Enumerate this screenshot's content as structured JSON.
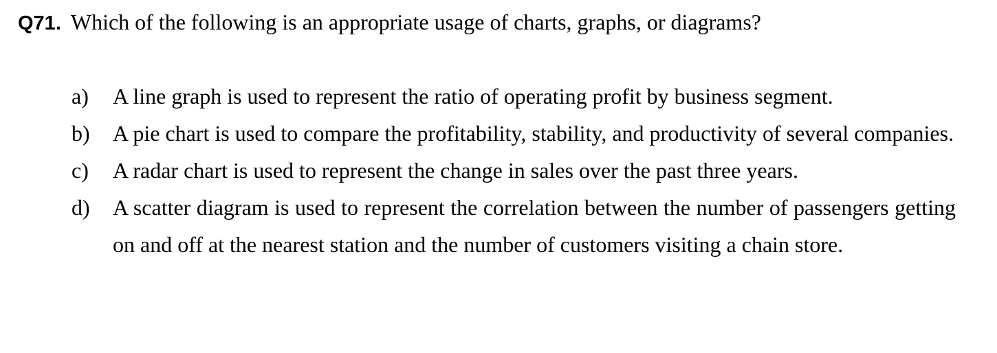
{
  "question": {
    "number": "Q71.",
    "text": "Which of the following is an appropriate usage of charts, graphs, or diagrams?"
  },
  "options": [
    {
      "label": "a)",
      "text": "A line graph is used to represent the ratio of operating profit by business segment."
    },
    {
      "label": "b)",
      "text": "A pie chart is used to compare the profitability, stability, and productivity of several companies."
    },
    {
      "label": "c)",
      "text": "A radar chart is used to represent the change in sales over the past three years."
    },
    {
      "label": "d)",
      "text": "A scatter diagram is used to represent the correlation between the number of passengers getting on and off at the nearest station and the number of customers visiting a chain store."
    }
  ]
}
